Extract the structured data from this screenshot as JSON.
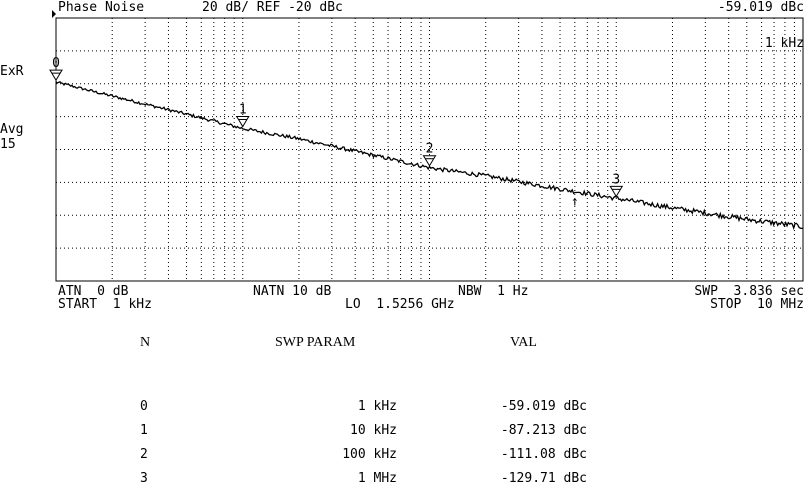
{
  "header": {
    "title": "Phase Noise",
    "scale": "20 dB/ REF -20 dBc",
    "marker_value": "-59.019 dBc",
    "marker_freq": "1 kHz"
  },
  "left_labels": {
    "exr": "ExR",
    "avg": "Avg",
    "avg_count": "15"
  },
  "footer": {
    "atn": "ATN  0 dB",
    "natn": "NATN 10 dB",
    "nbw": "NBW  1 Hz",
    "swp": "SWP  3.836 sec",
    "start": "START  1 kHz",
    "lo": "LO  1.5256 GHz",
    "stop": "STOP  10 MHz"
  },
  "table": {
    "headers": [
      "N",
      "SWP PARAM",
      "VAL"
    ],
    "rows": [
      {
        "n": "0",
        "param": "1 kHz",
        "val": "-59.019 dBc"
      },
      {
        "n": "1",
        "param": "10 kHz",
        "val": "-87.213 dBc"
      },
      {
        "n": "2",
        "param": "100 kHz",
        "val": "-111.08 dBc"
      },
      {
        "n": "3",
        "param": "1 MHz",
        "val": "-129.71 dBc"
      }
    ]
  },
  "colors": {
    "background": "#ffffff",
    "trace": "#000000",
    "grid": "#000000"
  },
  "chart_data": {
    "type": "line",
    "title": "Phase Noise",
    "xscale": "log",
    "xlim": [
      1000,
      10000000
    ],
    "ylim": [
      -180,
      -20
    ],
    "yunit": "dBc",
    "ydiv": 20,
    "grid": true,
    "series": [
      {
        "x": [
          1000,
          2000,
          5000,
          10000,
          20000,
          50000,
          100000,
          200000,
          500000,
          1000000,
          2000000,
          5000000,
          10000000
        ],
        "y": [
          -59,
          -67.5,
          -78.5,
          -87.2,
          -93.5,
          -103.5,
          -111.1,
          -116,
          -124,
          -129.7,
          -135.5,
          -142.5,
          -147
        ]
      }
    ],
    "markers": [
      {
        "label": "0",
        "x": 1000,
        "y": -59.019
      },
      {
        "label": "1",
        "x": 10000,
        "y": -87.213
      },
      {
        "label": "2",
        "x": 100000,
        "y": -111.08
      },
      {
        "label": "3",
        "x": 1000000,
        "y": -129.71
      }
    ],
    "extra_marker": {
      "symbol": "↑",
      "x": 600000
    }
  }
}
